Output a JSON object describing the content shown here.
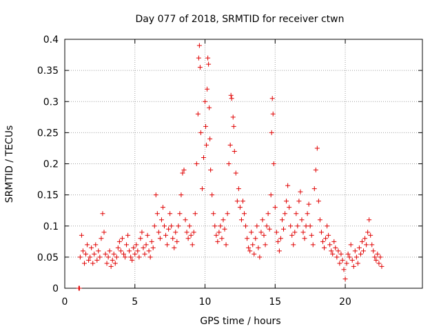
{
  "chart_data": {
    "type": "scatter",
    "title": "Day 077 of 2018, SRMTID for receiver ctwn",
    "xlabel": "GPS time / hours",
    "ylabel": "SRMTID / TECUs",
    "xlim": [
      0,
      25.5
    ],
    "ylim": [
      0,
      0.4
    ],
    "xticks": [
      0,
      5,
      10,
      15,
      20
    ],
    "xtick_labels": [
      "0",
      "5",
      "10",
      "15",
      "20"
    ],
    "yticks": [
      0,
      0.05,
      0.1,
      0.15,
      0.2,
      0.25,
      0.3,
      0.35,
      0.4
    ],
    "ytick_labels": [
      "0",
      "0.05",
      "0.1",
      "0.15",
      "0.2",
      "0.25",
      "0.3",
      "0.35",
      "0.4"
    ],
    "grid": true,
    "marker": "+",
    "marker_color": "#e00000",
    "grid_color": "#a0a0a0",
    "series": [
      {
        "name": "SRMTID",
        "points": [
          [
            1.0,
            0.0
          ],
          [
            1.02,
            0.0
          ],
          [
            1.05,
            0.0
          ],
          [
            1.1,
            0.05
          ],
          [
            1.2,
            0.085
          ],
          [
            1.3,
            0.06
          ],
          [
            1.4,
            0.04
          ],
          [
            1.5,
            0.055
          ],
          [
            1.6,
            0.07
          ],
          [
            1.7,
            0.045
          ],
          [
            1.8,
            0.05
          ],
          [
            1.9,
            0.065
          ],
          [
            2.0,
            0.04
          ],
          [
            2.1,
            0.055
          ],
          [
            2.2,
            0.07
          ],
          [
            2.3,
            0.045
          ],
          [
            2.4,
            0.06
          ],
          [
            2.5,
            0.05
          ],
          [
            2.6,
            0.08
          ],
          [
            2.7,
            0.12
          ],
          [
            2.8,
            0.09
          ],
          [
            2.9,
            0.055
          ],
          [
            3.0,
            0.04
          ],
          [
            3.1,
            0.05
          ],
          [
            3.2,
            0.06
          ],
          [
            3.3,
            0.035
          ],
          [
            3.4,
            0.045
          ],
          [
            3.5,
            0.055
          ],
          [
            3.6,
            0.04
          ],
          [
            3.7,
            0.05
          ],
          [
            3.8,
            0.065
          ],
          [
            3.9,
            0.075
          ],
          [
            4.0,
            0.06
          ],
          [
            4.1,
            0.08
          ],
          [
            4.2,
            0.055
          ],
          [
            4.3,
            0.05
          ],
          [
            4.4,
            0.07
          ],
          [
            4.5,
            0.085
          ],
          [
            4.6,
            0.06
          ],
          [
            4.7,
            0.05
          ],
          [
            4.8,
            0.045
          ],
          [
            4.9,
            0.065
          ],
          [
            5.0,
            0.055
          ],
          [
            5.1,
            0.07
          ],
          [
            5.2,
            0.06
          ],
          [
            5.3,
            0.05
          ],
          [
            5.4,
            0.08
          ],
          [
            5.5,
            0.09
          ],
          [
            5.6,
            0.065
          ],
          [
            5.7,
            0.055
          ],
          [
            5.8,
            0.07
          ],
          [
            5.9,
            0.085
          ],
          [
            6.0,
            0.06
          ],
          [
            6.1,
            0.05
          ],
          [
            6.2,
            0.075
          ],
          [
            6.3,
            0.065
          ],
          [
            6.4,
            0.1
          ],
          [
            6.5,
            0.15
          ],
          [
            6.6,
            0.12
          ],
          [
            6.7,
            0.09
          ],
          [
            6.8,
            0.08
          ],
          [
            6.9,
            0.11
          ],
          [
            7.0,
            0.13
          ],
          [
            7.1,
            0.1
          ],
          [
            7.2,
            0.085
          ],
          [
            7.3,
            0.07
          ],
          [
            7.4,
            0.095
          ],
          [
            7.5,
            0.12
          ],
          [
            7.6,
            0.1
          ],
          [
            7.7,
            0.08
          ],
          [
            7.8,
            0.065
          ],
          [
            7.9,
            0.09
          ],
          [
            8.0,
            0.075
          ],
          [
            8.1,
            0.1
          ],
          [
            8.2,
            0.12
          ],
          [
            8.3,
            0.15
          ],
          [
            8.4,
            0.185
          ],
          [
            8.5,
            0.19
          ],
          [
            8.6,
            0.11
          ],
          [
            8.7,
            0.09
          ],
          [
            8.8,
            0.08
          ],
          [
            8.9,
            0.1
          ],
          [
            9.0,
            0.085
          ],
          [
            9.1,
            0.07
          ],
          [
            9.2,
            0.09
          ],
          [
            9.3,
            0.12
          ],
          [
            9.4,
            0.2
          ],
          [
            9.5,
            0.28
          ],
          [
            9.55,
            0.37
          ],
          [
            9.6,
            0.39
          ],
          [
            9.65,
            0.355
          ],
          [
            9.7,
            0.25
          ],
          [
            9.8,
            0.16
          ],
          [
            9.9,
            0.21
          ],
          [
            10.0,
            0.3
          ],
          [
            10.05,
            0.26
          ],
          [
            10.1,
            0.23
          ],
          [
            10.15,
            0.32
          ],
          [
            10.2,
            0.37
          ],
          [
            10.25,
            0.36
          ],
          [
            10.3,
            0.29
          ],
          [
            10.35,
            0.24
          ],
          [
            10.4,
            0.19
          ],
          [
            10.5,
            0.15
          ],
          [
            10.6,
            0.12
          ],
          [
            10.7,
            0.1
          ],
          [
            10.8,
            0.085
          ],
          [
            10.9,
            0.075
          ],
          [
            11.0,
            0.09
          ],
          [
            11.1,
            0.1
          ],
          [
            11.2,
            0.08
          ],
          [
            11.3,
            0.11
          ],
          [
            11.4,
            0.095
          ],
          [
            11.5,
            0.07
          ],
          [
            11.6,
            0.12
          ],
          [
            11.7,
            0.2
          ],
          [
            11.8,
            0.23
          ],
          [
            11.85,
            0.31
          ],
          [
            11.9,
            0.305
          ],
          [
            12.0,
            0.275
          ],
          [
            12.05,
            0.26
          ],
          [
            12.1,
            0.22
          ],
          [
            12.2,
            0.185
          ],
          [
            12.3,
            0.14
          ],
          [
            12.4,
            0.16
          ],
          [
            12.5,
            0.13
          ],
          [
            12.6,
            0.11
          ],
          [
            12.7,
            0.14
          ],
          [
            12.8,
            0.12
          ],
          [
            12.9,
            0.1
          ],
          [
            13.0,
            0.08
          ],
          [
            13.1,
            0.065
          ],
          [
            13.2,
            0.06
          ],
          [
            13.3,
            0.09
          ],
          [
            13.4,
            0.07
          ],
          [
            13.5,
            0.055
          ],
          [
            13.6,
            0.08
          ],
          [
            13.7,
            0.1
          ],
          [
            13.8,
            0.065
          ],
          [
            13.9,
            0.05
          ],
          [
            14.0,
            0.09
          ],
          [
            14.1,
            0.11
          ],
          [
            14.2,
            0.085
          ],
          [
            14.3,
            0.07
          ],
          [
            14.4,
            0.1
          ],
          [
            14.5,
            0.12
          ],
          [
            14.6,
            0.095
          ],
          [
            14.7,
            0.15
          ],
          [
            14.75,
            0.25
          ],
          [
            14.8,
            0.305
          ],
          [
            14.85,
            0.28
          ],
          [
            14.9,
            0.2
          ],
          [
            15.0,
            0.13
          ],
          [
            15.1,
            0.09
          ],
          [
            15.2,
            0.075
          ],
          [
            15.3,
            0.06
          ],
          [
            15.4,
            0.08
          ],
          [
            15.5,
            0.11
          ],
          [
            15.6,
            0.095
          ],
          [
            15.7,
            0.12
          ],
          [
            15.8,
            0.14
          ],
          [
            15.9,
            0.165
          ],
          [
            16.0,
            0.13
          ],
          [
            16.1,
            0.1
          ],
          [
            16.2,
            0.085
          ],
          [
            16.3,
            0.07
          ],
          [
            16.4,
            0.09
          ],
          [
            16.5,
            0.12
          ],
          [
            16.6,
            0.1
          ],
          [
            16.7,
            0.14
          ],
          [
            16.8,
            0.155
          ],
          [
            16.9,
            0.11
          ],
          [
            17.0,
            0.09
          ],
          [
            17.1,
            0.08
          ],
          [
            17.2,
            0.1
          ],
          [
            17.3,
            0.12
          ],
          [
            17.4,
            0.135
          ],
          [
            17.5,
            0.1
          ],
          [
            17.6,
            0.085
          ],
          [
            17.7,
            0.07
          ],
          [
            17.8,
            0.16
          ],
          [
            17.9,
            0.19
          ],
          [
            18.0,
            0.225
          ],
          [
            18.1,
            0.14
          ],
          [
            18.2,
            0.11
          ],
          [
            18.3,
            0.09
          ],
          [
            18.4,
            0.075
          ],
          [
            18.5,
            0.065
          ],
          [
            18.6,
            0.08
          ],
          [
            18.7,
            0.1
          ],
          [
            18.8,
            0.085
          ],
          [
            18.9,
            0.07
          ],
          [
            19.0,
            0.06
          ],
          [
            19.1,
            0.055
          ],
          [
            19.2,
            0.075
          ],
          [
            19.3,
            0.065
          ],
          [
            19.4,
            0.05
          ],
          [
            19.5,
            0.06
          ],
          [
            19.6,
            0.04
          ],
          [
            19.7,
            0.055
          ],
          [
            19.8,
            0.045
          ],
          [
            19.9,
            0.03
          ],
          [
            20.0,
            0.015
          ],
          [
            20.1,
            0.04
          ],
          [
            20.2,
            0.055
          ],
          [
            20.3,
            0.05
          ],
          [
            20.4,
            0.07
          ],
          [
            20.5,
            0.045
          ],
          [
            20.6,
            0.035
          ],
          [
            20.7,
            0.06
          ],
          [
            20.8,
            0.05
          ],
          [
            20.9,
            0.04
          ],
          [
            21.0,
            0.065
          ],
          [
            21.1,
            0.055
          ],
          [
            21.2,
            0.075
          ],
          [
            21.3,
            0.06
          ],
          [
            21.4,
            0.08
          ],
          [
            21.5,
            0.07
          ],
          [
            21.6,
            0.09
          ],
          [
            21.7,
            0.11
          ],
          [
            21.8,
            0.085
          ],
          [
            21.9,
            0.07
          ],
          [
            22.0,
            0.06
          ],
          [
            22.1,
            0.05
          ],
          [
            22.2,
            0.045
          ],
          [
            22.3,
            0.055
          ],
          [
            22.4,
            0.04
          ],
          [
            22.5,
            0.05
          ],
          [
            22.6,
            0.035
          ]
        ]
      }
    ]
  }
}
